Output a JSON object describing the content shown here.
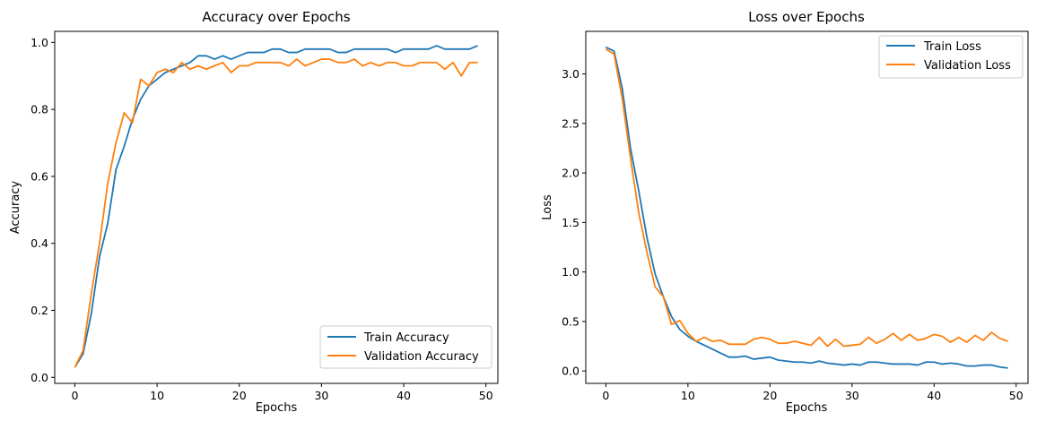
{
  "colors": {
    "train": "#1f77b4",
    "validation": "#ff7f0e"
  },
  "chart_data": [
    {
      "type": "line",
      "title": "Accuracy over Epochs",
      "xlabel": "Epochs",
      "ylabel": "Accuracy",
      "xlim": [
        -2.45,
        51.45
      ],
      "ylim": [
        -0.018,
        1.033
      ],
      "xticks": [
        0,
        10,
        20,
        30,
        40,
        50
      ],
      "xtick_labels": [
        "0",
        "10",
        "20",
        "30",
        "40",
        "50"
      ],
      "yticks": [
        0.0,
        0.2,
        0.4,
        0.6,
        0.8,
        1.0
      ],
      "ytick_labels": [
        "0.0",
        "0.2",
        "0.4",
        "0.6",
        "0.8",
        "1.0"
      ],
      "legend_position": "bottom-right",
      "grid": false,
      "x": [
        0,
        1,
        2,
        3,
        4,
        5,
        6,
        7,
        8,
        9,
        10,
        11,
        12,
        13,
        14,
        15,
        16,
        17,
        18,
        19,
        20,
        21,
        22,
        23,
        24,
        25,
        26,
        27,
        28,
        29,
        30,
        31,
        32,
        33,
        34,
        35,
        36,
        37,
        38,
        39,
        40,
        41,
        42,
        43,
        44,
        45,
        46,
        47,
        48,
        49
      ],
      "series": [
        {
          "name": "Train Accuracy",
          "color": "#1f77b4",
          "values": [
            0.03,
            0.07,
            0.19,
            0.36,
            0.46,
            0.62,
            0.69,
            0.77,
            0.83,
            0.87,
            0.89,
            0.91,
            0.92,
            0.93,
            0.94,
            0.96,
            0.96,
            0.95,
            0.96,
            0.95,
            0.96,
            0.97,
            0.97,
            0.97,
            0.98,
            0.98,
            0.97,
            0.97,
            0.98,
            0.98,
            0.98,
            0.98,
            0.97,
            0.97,
            0.98,
            0.98,
            0.98,
            0.98,
            0.98,
            0.97,
            0.98,
            0.98,
            0.98,
            0.98,
            0.99,
            0.98,
            0.98,
            0.98,
            0.98,
            0.99
          ]
        },
        {
          "name": "Validation Accuracy",
          "color": "#ff7f0e",
          "values": [
            0.03,
            0.08,
            0.25,
            0.4,
            0.58,
            0.7,
            0.79,
            0.76,
            0.89,
            0.87,
            0.91,
            0.92,
            0.91,
            0.94,
            0.92,
            0.93,
            0.92,
            0.93,
            0.94,
            0.91,
            0.93,
            0.93,
            0.94,
            0.94,
            0.94,
            0.94,
            0.93,
            0.95,
            0.93,
            0.94,
            0.95,
            0.95,
            0.94,
            0.94,
            0.95,
            0.93,
            0.94,
            0.93,
            0.94,
            0.94,
            0.93,
            0.93,
            0.94,
            0.94,
            0.94,
            0.92,
            0.94,
            0.9,
            0.94,
            0.94
          ]
        }
      ]
    },
    {
      "type": "line",
      "title": "Loss over Epochs",
      "xlabel": "Epochs",
      "ylabel": "Loss",
      "xlim": [
        -2.45,
        51.45
      ],
      "ylim": [
        -0.125,
        3.43
      ],
      "xticks": [
        0,
        10,
        20,
        30,
        40,
        50
      ],
      "xtick_labels": [
        "0",
        "10",
        "20",
        "30",
        "40",
        "50"
      ],
      "yticks": [
        0.0,
        0.5,
        1.0,
        1.5,
        2.0,
        2.5,
        3.0
      ],
      "ytick_labels": [
        "0.0",
        "0.5",
        "1.0",
        "1.5",
        "2.0",
        "2.5",
        "3.0"
      ],
      "legend_position": "top-right",
      "grid": false,
      "x": [
        0,
        1,
        2,
        3,
        4,
        5,
        6,
        7,
        8,
        9,
        10,
        11,
        12,
        13,
        14,
        15,
        16,
        17,
        18,
        19,
        20,
        21,
        22,
        23,
        24,
        25,
        26,
        27,
        28,
        29,
        30,
        31,
        32,
        33,
        34,
        35,
        36,
        37,
        38,
        39,
        40,
        41,
        42,
        43,
        44,
        45,
        46,
        47,
        48,
        49
      ],
      "series": [
        {
          "name": "Train Loss",
          "color": "#1f77b4",
          "values": [
            3.27,
            3.23,
            2.85,
            2.25,
            1.82,
            1.35,
            0.98,
            0.75,
            0.55,
            0.42,
            0.35,
            0.3,
            0.26,
            0.22,
            0.18,
            0.14,
            0.14,
            0.15,
            0.12,
            0.13,
            0.14,
            0.11,
            0.1,
            0.09,
            0.09,
            0.08,
            0.1,
            0.08,
            0.07,
            0.06,
            0.07,
            0.06,
            0.09,
            0.09,
            0.08,
            0.07,
            0.07,
            0.07,
            0.06,
            0.09,
            0.09,
            0.07,
            0.08,
            0.07,
            0.05,
            0.05,
            0.06,
            0.06,
            0.04,
            0.03
          ]
        },
        {
          "name": "Validation Loss",
          "color": "#ff7f0e",
          "values": [
            3.25,
            3.2,
            2.75,
            2.15,
            1.6,
            1.2,
            0.85,
            0.75,
            0.47,
            0.51,
            0.38,
            0.3,
            0.34,
            0.3,
            0.31,
            0.27,
            0.27,
            0.27,
            0.32,
            0.34,
            0.32,
            0.28,
            0.28,
            0.3,
            0.28,
            0.26,
            0.34,
            0.25,
            0.32,
            0.25,
            0.26,
            0.27,
            0.34,
            0.28,
            0.32,
            0.38,
            0.31,
            0.37,
            0.31,
            0.33,
            0.37,
            0.35,
            0.29,
            0.34,
            0.29,
            0.36,
            0.31,
            0.39,
            0.33,
            0.3
          ]
        }
      ]
    }
  ]
}
